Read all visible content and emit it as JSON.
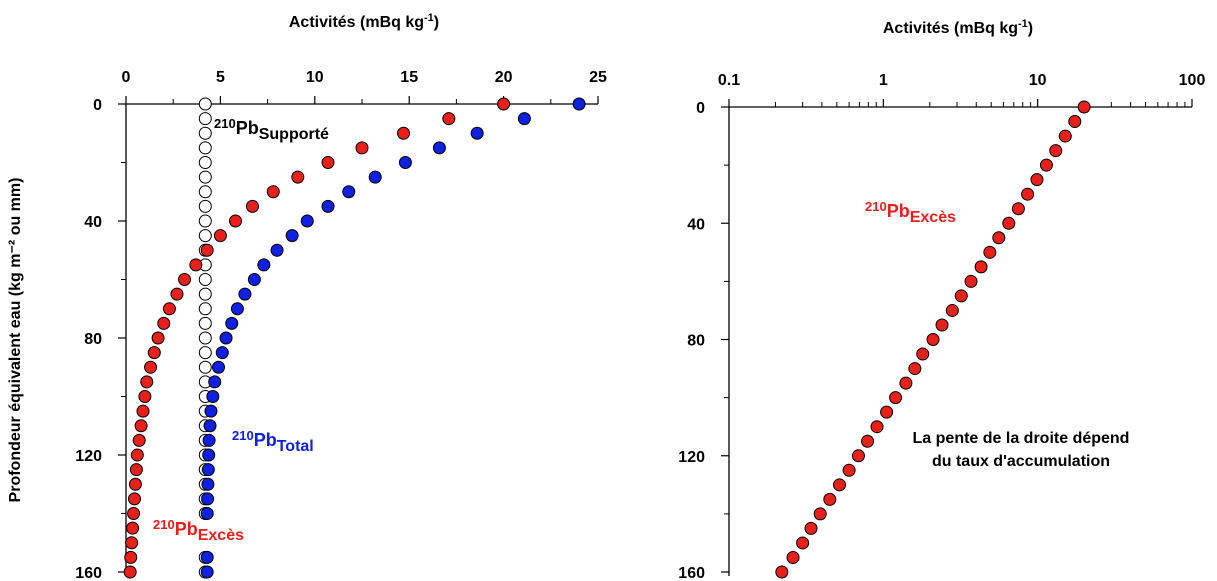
{
  "y_axis_label": "Profondeur équivalent eau (kg m⁻² ou mm)",
  "colors": {
    "excess": "#e8201c",
    "total": "#1020e0",
    "supported_fill": "#ffffff",
    "stroke": "#000000"
  },
  "chart_data": [
    {
      "type": "scatter",
      "xlabel": "Activités (mBq kg-1)",
      "xlabel_parts": {
        "base": "Activités (mBq kg",
        "sup": "-1",
        "tail": ")"
      },
      "xscale": "linear",
      "xlim": [
        0,
        25
      ],
      "xticks": [
        "0",
        "5",
        "10",
        "15",
        "20",
        "25"
      ],
      "ylim": [
        0,
        160
      ],
      "y_inverted": true,
      "yticks": [
        "0",
        "40",
        "80",
        "120",
        "160"
      ],
      "series": [
        {
          "name": "210PbSupporté",
          "label_parts": {
            "sup": "210",
            "base": "Pb",
            "sub": "Supporté"
          },
          "color": "#ffffff",
          "depth": [
            0,
            5,
            10,
            15,
            20,
            25,
            30,
            35,
            40,
            45,
            50,
            55,
            60,
            65,
            70,
            75,
            80,
            85,
            90,
            95,
            100,
            105,
            110,
            115,
            120,
            125,
            130,
            135,
            140,
            155,
            160
          ],
          "activity": [
            4.2,
            4.2,
            4.2,
            4.2,
            4.2,
            4.2,
            4.2,
            4.2,
            4.2,
            4.2,
            4.2,
            4.2,
            4.2,
            4.2,
            4.2,
            4.2,
            4.2,
            4.2,
            4.2,
            4.2,
            4.2,
            4.2,
            4.2,
            4.2,
            4.2,
            4.2,
            4.2,
            4.2,
            4.2,
            4.2,
            4.2
          ]
        },
        {
          "name": "210PbExcès",
          "label_parts": {
            "sup": "210",
            "base": "Pb",
            "sub": "Excès"
          },
          "color": "#e8201c",
          "depth": [
            0,
            5,
            10,
            15,
            20,
            25,
            30,
            35,
            40,
            45,
            50,
            55,
            60,
            65,
            70,
            75,
            80,
            85,
            90,
            95,
            100,
            105,
            110,
            115,
            120,
            125,
            130,
            135,
            140,
            145,
            150,
            155,
            160
          ],
          "activity": [
            20.0,
            17.1,
            14.7,
            12.5,
            10.7,
            9.1,
            7.8,
            6.7,
            5.8,
            5.0,
            4.3,
            3.7,
            3.1,
            2.7,
            2.3,
            2.0,
            1.7,
            1.5,
            1.3,
            1.1,
            1.0,
            0.9,
            0.8,
            0.7,
            0.6,
            0.55,
            0.5,
            0.45,
            0.4,
            0.35,
            0.3,
            0.25,
            0.22
          ]
        },
        {
          "name": "210PbTotal",
          "label_parts": {
            "sup": "210",
            "base": "Pb",
            "sub": "Total"
          },
          "color": "#1020e0",
          "depth": [
            0,
            5,
            10,
            15,
            20,
            25,
            30,
            35,
            40,
            45,
            50,
            55,
            60,
            65,
            70,
            75,
            80,
            85,
            90,
            95,
            100,
            105,
            110,
            115,
            120,
            125,
            130,
            135,
            140,
            155,
            160
          ],
          "activity": [
            24.0,
            21.1,
            18.6,
            16.6,
            14.8,
            13.2,
            11.8,
            10.7,
            9.6,
            8.8,
            8.0,
            7.3,
            6.8,
            6.3,
            5.9,
            5.6,
            5.3,
            5.1,
            4.9,
            4.7,
            4.6,
            4.5,
            4.45,
            4.4,
            4.38,
            4.36,
            4.34,
            4.32,
            4.3,
            4.3,
            4.3
          ]
        }
      ]
    },
    {
      "type": "scatter",
      "xlabel": "Activités (mBq kg-1)",
      "xlabel_parts": {
        "base": "Activités (mBq kg",
        "sup": "-1",
        "tail": ")"
      },
      "xscale": "log",
      "xlim": [
        0.1,
        100
      ],
      "xticks": [
        "0.1",
        "1",
        "10",
        "100"
      ],
      "ylim": [
        0,
        160
      ],
      "y_inverted": true,
      "yticks": [
        "0",
        "40",
        "80",
        "120",
        "160"
      ],
      "annotation_line1": "La pente de la droite dépend",
      "annotation_line2": "du taux d'accumulation",
      "series": [
        {
          "name": "210PbExcès",
          "label_parts": {
            "sup": "210",
            "base": "Pb",
            "sub": "Excès"
          },
          "color": "#e8201c",
          "depth": [
            0,
            5,
            10,
            15,
            20,
            25,
            30,
            35,
            40,
            45,
            50,
            55,
            60,
            65,
            70,
            75,
            80,
            85,
            90,
            95,
            100,
            105,
            110,
            115,
            120,
            125,
            130,
            135,
            140,
            145,
            150,
            155,
            160
          ],
          "activity": [
            20.0,
            17.4,
            15.1,
            13.1,
            11.4,
            9.9,
            8.6,
            7.5,
            6.5,
            5.6,
            4.9,
            4.3,
            3.7,
            3.2,
            2.8,
            2.4,
            2.1,
            1.8,
            1.6,
            1.4,
            1.2,
            1.05,
            0.91,
            0.79,
            0.69,
            0.6,
            0.52,
            0.45,
            0.39,
            0.34,
            0.3,
            0.26,
            0.22
          ]
        }
      ]
    }
  ]
}
